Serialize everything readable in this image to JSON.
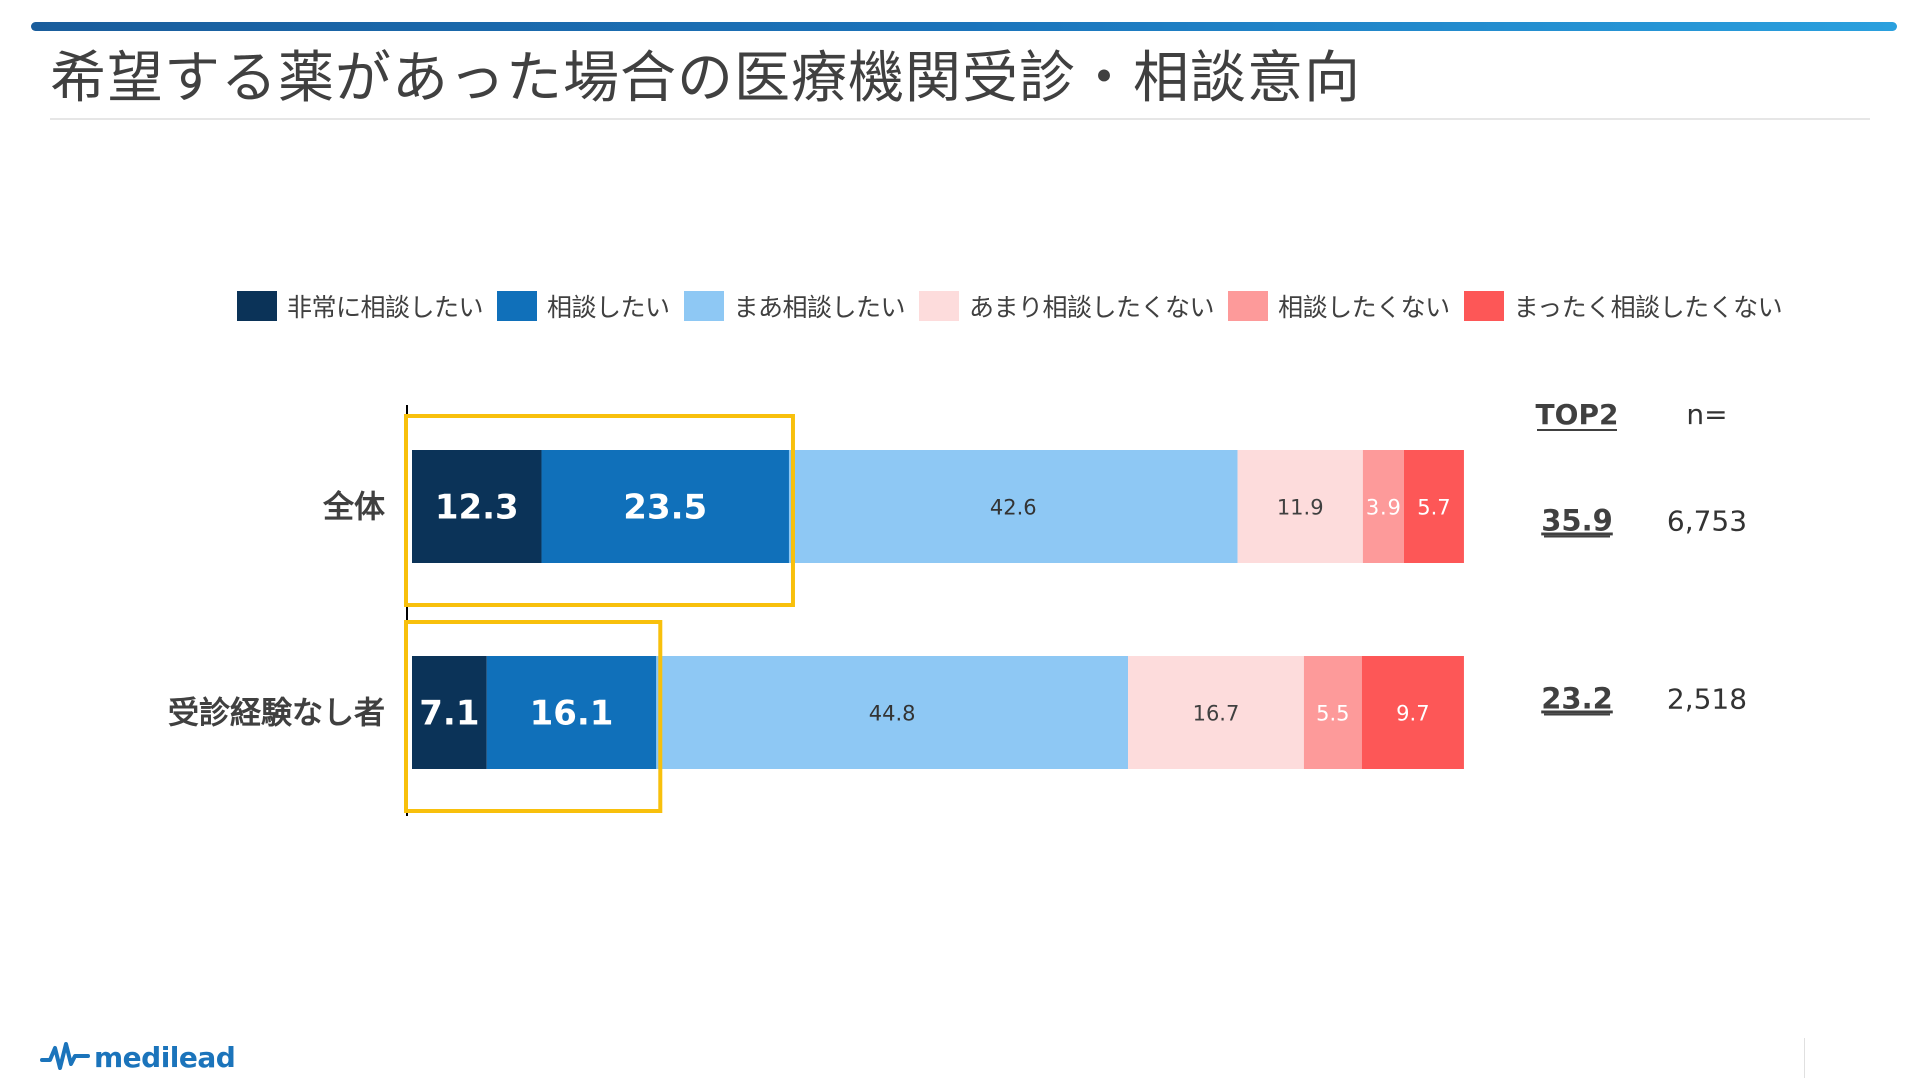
{
  "page": {
    "title": "希望する薬があった場合の医療機関受診・相談意向",
    "logo_text": "medilead"
  },
  "chart_data": {
    "type": "bar",
    "orientation": "horizontal",
    "stacked": true,
    "categories": [
      "全体",
      "受診経験なし者"
    ],
    "series": [
      {
        "name": "非常に相談したい",
        "color": "#0b3358",
        "label_color": "#ffffff",
        "values": [
          12.3,
          7.1
        ]
      },
      {
        "name": "相談したい",
        "color": "#1070ba",
        "label_color": "#ffffff",
        "values": [
          23.5,
          16.1
        ]
      },
      {
        "name": "まあ相談したい",
        "color": "#8ec8f4",
        "label_color": "#333333",
        "values": [
          42.6,
          44.8
        ]
      },
      {
        "name": "あまり相談したくない",
        "color": "#fddcdc",
        "label_color": "#404040",
        "values": [
          11.9,
          16.7
        ]
      },
      {
        "name": "相談したくない",
        "color": "#fd9a9a",
        "label_color": "#ffffff",
        "values": [
          3.9,
          5.5
        ]
      },
      {
        "name": "まったく相談したくない",
        "color": "#fd5757",
        "label_color": "#ffffff",
        "values": [
          5.7,
          9.7
        ]
      }
    ],
    "xlim": [
      0,
      100
    ],
    "legend_position": "top",
    "highlight": {
      "series_indices": [
        0,
        1
      ],
      "color": "#f8c00c"
    },
    "columns": {
      "top2": {
        "header": "TOP2",
        "values": [
          "35.9",
          "23.2"
        ]
      },
      "n": {
        "header": "n=",
        "values": [
          "6,753",
          "2,518"
        ]
      }
    }
  }
}
